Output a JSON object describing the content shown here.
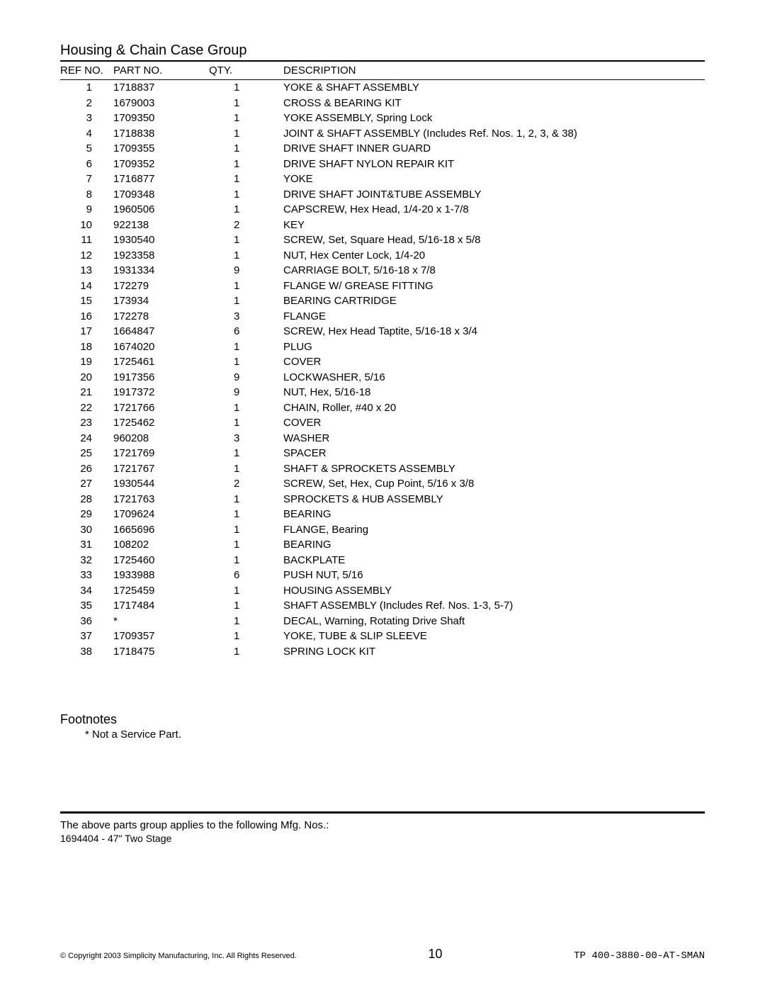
{
  "title": "Housing & Chain Case Group",
  "columns": {
    "ref": "REF NO.",
    "part": "PART NO.",
    "qty": "QTY.",
    "desc": "DESCRIPTION"
  },
  "rows": [
    {
      "ref": "1",
      "part": "1718837",
      "qty": "1",
      "desc": "YOKE & SHAFT ASSEMBLY"
    },
    {
      "ref": "2",
      "part": "1679003",
      "qty": "1",
      "desc": "CROSS & BEARING KIT"
    },
    {
      "ref": "3",
      "part": "1709350",
      "qty": "1",
      "desc": "YOKE ASSEMBLY, Spring Lock"
    },
    {
      "ref": "4",
      "part": "1718838",
      "qty": "1",
      "desc": "JOINT & SHAFT ASSEMBLY (Includes Ref. Nos. 1, 2, 3, & 38)"
    },
    {
      "ref": "5",
      "part": "1709355",
      "qty": "1",
      "desc": "DRIVE SHAFT INNER GUARD"
    },
    {
      "ref": "6",
      "part": "1709352",
      "qty": "1",
      "desc": "DRIVE SHAFT NYLON REPAIR KIT"
    },
    {
      "ref": "7",
      "part": "1716877",
      "qty": "1",
      "desc": "YOKE"
    },
    {
      "ref": "8",
      "part": "1709348",
      "qty": "1",
      "desc": "DRIVE SHAFT JOINT&TUBE ASSEMBLY"
    },
    {
      "ref": "9",
      "part": "1960506",
      "qty": "1",
      "desc": "CAPSCREW, Hex Head, 1/4-20 x 1-7/8"
    },
    {
      "ref": "10",
      "part": "922138",
      "qty": "2",
      "desc": "KEY"
    },
    {
      "ref": "11",
      "part": "1930540",
      "qty": "1",
      "desc": "SCREW, Set, Square Head, 5/16-18 x 5/8"
    },
    {
      "ref": "12",
      "part": "1923358",
      "qty": "1",
      "desc": "NUT, Hex Center Lock, 1/4-20"
    },
    {
      "ref": "13",
      "part": "1931334",
      "qty": "9",
      "desc": "CARRIAGE BOLT, 5/16-18 x 7/8"
    },
    {
      "ref": "14",
      "part": "172279",
      "qty": "1",
      "desc": "FLANGE W/ GREASE FITTING"
    },
    {
      "ref": "15",
      "part": "173934",
      "qty": "1",
      "desc": "BEARING CARTRIDGE"
    },
    {
      "ref": "16",
      "part": "172278",
      "qty": "3",
      "desc": "FLANGE"
    },
    {
      "ref": "17",
      "part": "1664847",
      "qty": "6",
      "desc": "SCREW, Hex Head Taptite, 5/16-18 x 3/4"
    },
    {
      "ref": "18",
      "part": "1674020",
      "qty": "1",
      "desc": "PLUG"
    },
    {
      "ref": "19",
      "part": "1725461",
      "qty": "1",
      "desc": "COVER"
    },
    {
      "ref": "20",
      "part": "1917356",
      "qty": "9",
      "desc": "LOCKWASHER, 5/16"
    },
    {
      "ref": "21",
      "part": "1917372",
      "qty": "9",
      "desc": "NUT, Hex, 5/16-18"
    },
    {
      "ref": "22",
      "part": "1721766",
      "qty": "1",
      "desc": "CHAIN, Roller, #40 x 20"
    },
    {
      "ref": "23",
      "part": "1725462",
      "qty": "1",
      "desc": "COVER"
    },
    {
      "ref": "24",
      "part": "960208",
      "qty": "3",
      "desc": "WASHER"
    },
    {
      "ref": "25",
      "part": "1721769",
      "qty": "1",
      "desc": "SPACER"
    },
    {
      "ref": "26",
      "part": "1721767",
      "qty": "1",
      "desc": "SHAFT & SPROCKETS ASSEMBLY"
    },
    {
      "ref": "27",
      "part": "1930544",
      "qty": "2",
      "desc": "SCREW, Set, Hex, Cup Point, 5/16 x 3/8"
    },
    {
      "ref": "28",
      "part": "1721763",
      "qty": "1",
      "desc": "SPROCKETS & HUB ASSEMBLY"
    },
    {
      "ref": "29",
      "part": "1709624",
      "qty": "1",
      "desc": "BEARING"
    },
    {
      "ref": "30",
      "part": "1665696",
      "qty": "1",
      "desc": "FLANGE, Bearing"
    },
    {
      "ref": "31",
      "part": "108202",
      "qty": "1",
      "desc": "BEARING"
    },
    {
      "ref": "32",
      "part": "1725460",
      "qty": "1",
      "desc": "BACKPLATE"
    },
    {
      "ref": "33",
      "part": "1933988",
      "qty": "6",
      "desc": "PUSH NUT, 5/16"
    },
    {
      "ref": "34",
      "part": "1725459",
      "qty": "1",
      "desc": "HOUSING ASSEMBLY"
    },
    {
      "ref": "35",
      "part": "1717484",
      "qty": "1",
      "desc": "SHAFT ASSEMBLY (Includes Ref. Nos. 1-3, 5-7)"
    },
    {
      "ref": "36",
      "part": "*",
      "qty": "1",
      "desc": "DECAL, Warning, Rotating Drive Shaft"
    },
    {
      "ref": "37",
      "part": "1709357",
      "qty": "1",
      "desc": "YOKE, TUBE & SLIP SLEEVE"
    },
    {
      "ref": "38",
      "part": "1718475",
      "qty": "1",
      "desc": "SPRING LOCK KIT"
    }
  ],
  "footnotes": {
    "title": "Footnotes",
    "text": "* Not a Service Part."
  },
  "applies": {
    "heading": "The above parts group applies to the following Mfg. Nos.:",
    "line": "1694404 - 47\" Two Stage"
  },
  "footer": {
    "copyright": "© Copyright 2003 Simplicity Manufacturing, Inc. All Rights Reserved.",
    "page": "10",
    "docid": "TP 400-3880-00-AT-SMAN"
  }
}
